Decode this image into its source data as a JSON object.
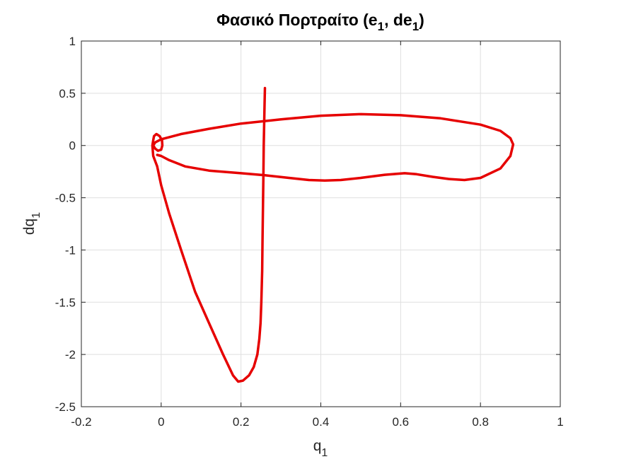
{
  "chart_data": {
    "type": "line",
    "title": {
      "text": "Φασικό Πορτραίτο (e",
      "sub1": "1",
      "mid": ", de",
      "sub2": "1",
      "end": ")"
    },
    "xlabel": {
      "base": "q",
      "sub": "1"
    },
    "ylabel": {
      "base": "dq",
      "sub": "1"
    },
    "xlim": [
      -0.2,
      1
    ],
    "ylim": [
      -2.5,
      1
    ],
    "xticks": [
      -0.2,
      0,
      0.2,
      0.4,
      0.6,
      0.8,
      1
    ],
    "yticks": [
      -2.5,
      -2,
      -1.5,
      -1,
      -0.5,
      0,
      0.5,
      1
    ],
    "xtick_labels": [
      "-0.2",
      "0",
      "0.2",
      "0.4",
      "0.6",
      "0.8",
      "1"
    ],
    "ytick_labels": [
      "-2.5",
      "-2",
      "-1.5",
      "-1",
      "-0.5",
      "0",
      "0.5",
      "1"
    ],
    "grid": true,
    "series": [
      {
        "color": "#e60000",
        "x": [
          0.26,
          0.259,
          0.258,
          0.257,
          0.256,
          0.255,
          0.254,
          0.253,
          0.251,
          0.249,
          0.246,
          0.241,
          0.232,
          0.22,
          0.205,
          0.193,
          0.18,
          0.155,
          0.12,
          0.085,
          0.05,
          0.02,
          0.0,
          -0.01,
          -0.02,
          -0.022,
          -0.02,
          -0.018,
          -0.012,
          -0.004,
          0.002,
          0.003,
          0.0,
          -0.008,
          -0.015,
          -0.02,
          -0.015,
          0.0,
          0.05,
          0.12,
          0.2,
          0.3,
          0.4,
          0.5,
          0.6,
          0.7,
          0.8,
          0.85,
          0.875,
          0.882,
          0.875,
          0.85,
          0.8,
          0.76,
          0.72,
          0.68,
          0.64,
          0.61,
          0.56,
          0.5,
          0.45,
          0.41,
          0.37,
          0.32,
          0.26,
          0.2,
          0.12,
          0.06,
          0.02,
          0.0,
          -0.01
        ],
        "y": [
          0.55,
          0.4,
          0.2,
          0.0,
          -0.3,
          -0.6,
          -0.9,
          -1.2,
          -1.5,
          -1.7,
          -1.85,
          -2.0,
          -2.12,
          -2.2,
          -2.25,
          -2.26,
          -2.2,
          -2.0,
          -1.7,
          -1.4,
          -1.0,
          -0.65,
          -0.38,
          -0.2,
          -0.1,
          0.0,
          0.05,
          0.09,
          0.11,
          0.09,
          0.05,
          0.0,
          -0.04,
          -0.05,
          -0.03,
          0.0,
          0.03,
          0.06,
          0.11,
          0.16,
          0.21,
          0.25,
          0.285,
          0.3,
          0.29,
          0.26,
          0.2,
          0.14,
          0.07,
          0.01,
          -0.1,
          -0.22,
          -0.31,
          -0.33,
          -0.32,
          -0.3,
          -0.275,
          -0.265,
          -0.28,
          -0.31,
          -0.33,
          -0.335,
          -0.33,
          -0.31,
          -0.285,
          -0.265,
          -0.24,
          -0.2,
          -0.14,
          -0.1,
          -0.09
        ]
      }
    ]
  }
}
